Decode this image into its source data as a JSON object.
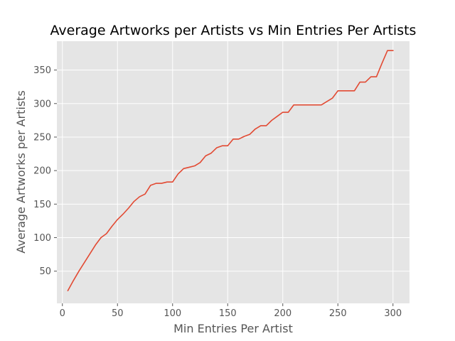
{
  "chart_data": {
    "type": "line",
    "title": "Average Artworks per Artists vs Min Entries Per Artists",
    "xlabel": "Min Entries Per Artist",
    "ylabel": "Average Artworks per Artists",
    "xlim": [
      -5,
      315
    ],
    "ylim": [
      2,
      393
    ],
    "xticks": [
      0,
      50,
      100,
      150,
      200,
      250,
      300
    ],
    "yticks": [
      50,
      100,
      150,
      200,
      250,
      300,
      350
    ],
    "grid": true,
    "style": "ggplot",
    "colors": {
      "background": "#E5E5E5",
      "grid": "#FFFFFF",
      "line": "#E24A33"
    },
    "series": [
      {
        "x": [
          5,
          10,
          15,
          20,
          25,
          30,
          35,
          40,
          45,
          50,
          55,
          60,
          65,
          70,
          75,
          80,
          85,
          90,
          95,
          100,
          105,
          110,
          115,
          120,
          125,
          130,
          135,
          140,
          145,
          150,
          155,
          160,
          165,
          170,
          175,
          180,
          185,
          190,
          195,
          200,
          205,
          210,
          215,
          220,
          225,
          230,
          235,
          240,
          245,
          250,
          255,
          260,
          265,
          270,
          275,
          280,
          285,
          290,
          295,
          300
        ],
        "values": [
          21,
          36,
          50,
          63,
          76,
          89,
          100,
          106,
          117,
          127,
          135,
          144,
          154,
          161,
          165,
          178,
          181,
          181,
          183,
          183,
          195,
          203,
          205,
          207,
          212,
          222,
          226,
          234,
          237,
          237,
          247,
          247,
          251,
          254,
          262,
          267,
          267,
          275,
          281,
          287,
          287,
          298,
          298,
          298,
          298,
          298,
          298,
          303,
          308,
          319,
          319,
          319,
          319,
          332,
          332,
          340,
          340,
          360,
          379,
          379
        ]
      }
    ]
  }
}
